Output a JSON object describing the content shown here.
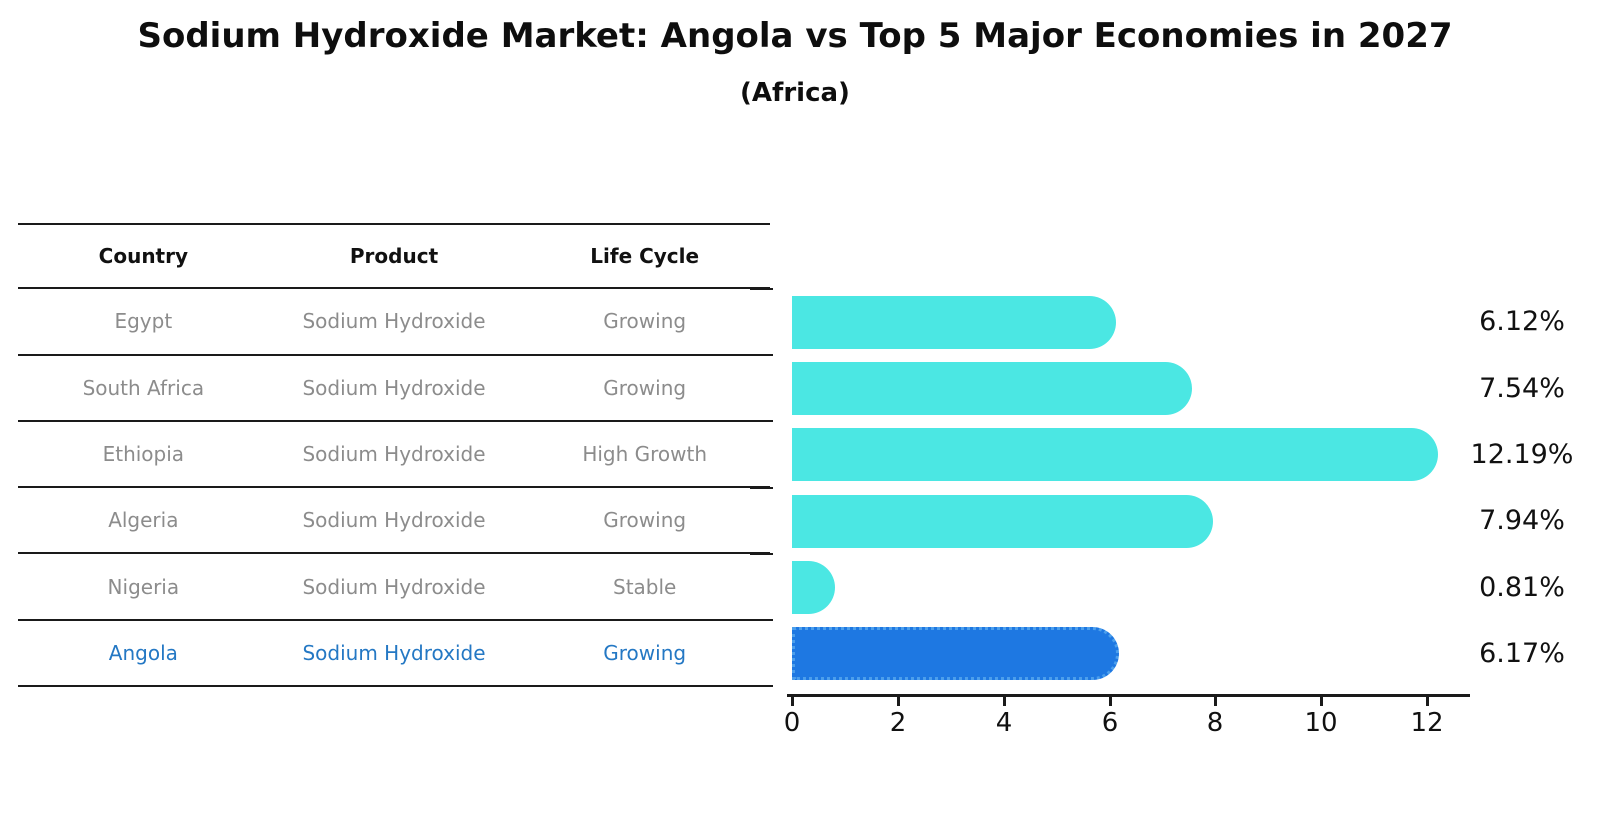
{
  "title": "Sodium Hydroxide Market: Angola vs Top 5 Major Economies in 2027",
  "subtitle": "(Africa)",
  "table": {
    "headers": [
      "Country",
      "Product",
      "Life Cycle"
    ],
    "rows": [
      {
        "country": "Egypt",
        "product": "Sodium Hydroxide",
        "life_cycle": "Growing",
        "highlighted": false
      },
      {
        "country": "South Africa",
        "product": "Sodium Hydroxide",
        "life_cycle": "Growing",
        "highlighted": false
      },
      {
        "country": "Ethiopia",
        "product": "Sodium Hydroxide",
        "life_cycle": "High Growth",
        "highlighted": false
      },
      {
        "country": "Algeria",
        "product": "Sodium Hydroxide",
        "life_cycle": "Growing",
        "highlighted": false
      },
      {
        "country": "Nigeria",
        "product": "Sodium Hydroxide",
        "life_cycle": "Stable",
        "highlighted": false
      },
      {
        "country": "Angola",
        "product": "Sodium Hydroxide",
        "life_cycle": "Growing",
        "highlighted": true
      }
    ]
  },
  "chart_data": {
    "type": "bar",
    "orientation": "horizontal",
    "title": "Sodium Hydroxide Market: Angola vs Top 5 Major Economies in 2027",
    "subtitle": "(Africa)",
    "categories": [
      "Egypt",
      "South Africa",
      "Ethiopia",
      "Algeria",
      "Nigeria",
      "Angola"
    ],
    "values": [
      6.12,
      7.54,
      12.19,
      7.94,
      0.81,
      6.17
    ],
    "value_labels": [
      "6.12%",
      "7.54%",
      "12.19%",
      "7.94%",
      "0.81%",
      "6.17%"
    ],
    "x_ticks": [
      0,
      2,
      4,
      6,
      8,
      10,
      12
    ],
    "xlim": [
      0,
      12.8
    ],
    "xlabel": "",
    "ylabel": "",
    "grid": false,
    "legend": false,
    "highlight_category": "Angola",
    "colors": {
      "bar_default": "#4be7e3",
      "bar_highlight": "#1e78e2",
      "bar_highlight_border": "#4c9fec",
      "highlight_text": "#2478c4",
      "table_text": "#8c8c8c",
      "text": "#111111"
    }
  }
}
